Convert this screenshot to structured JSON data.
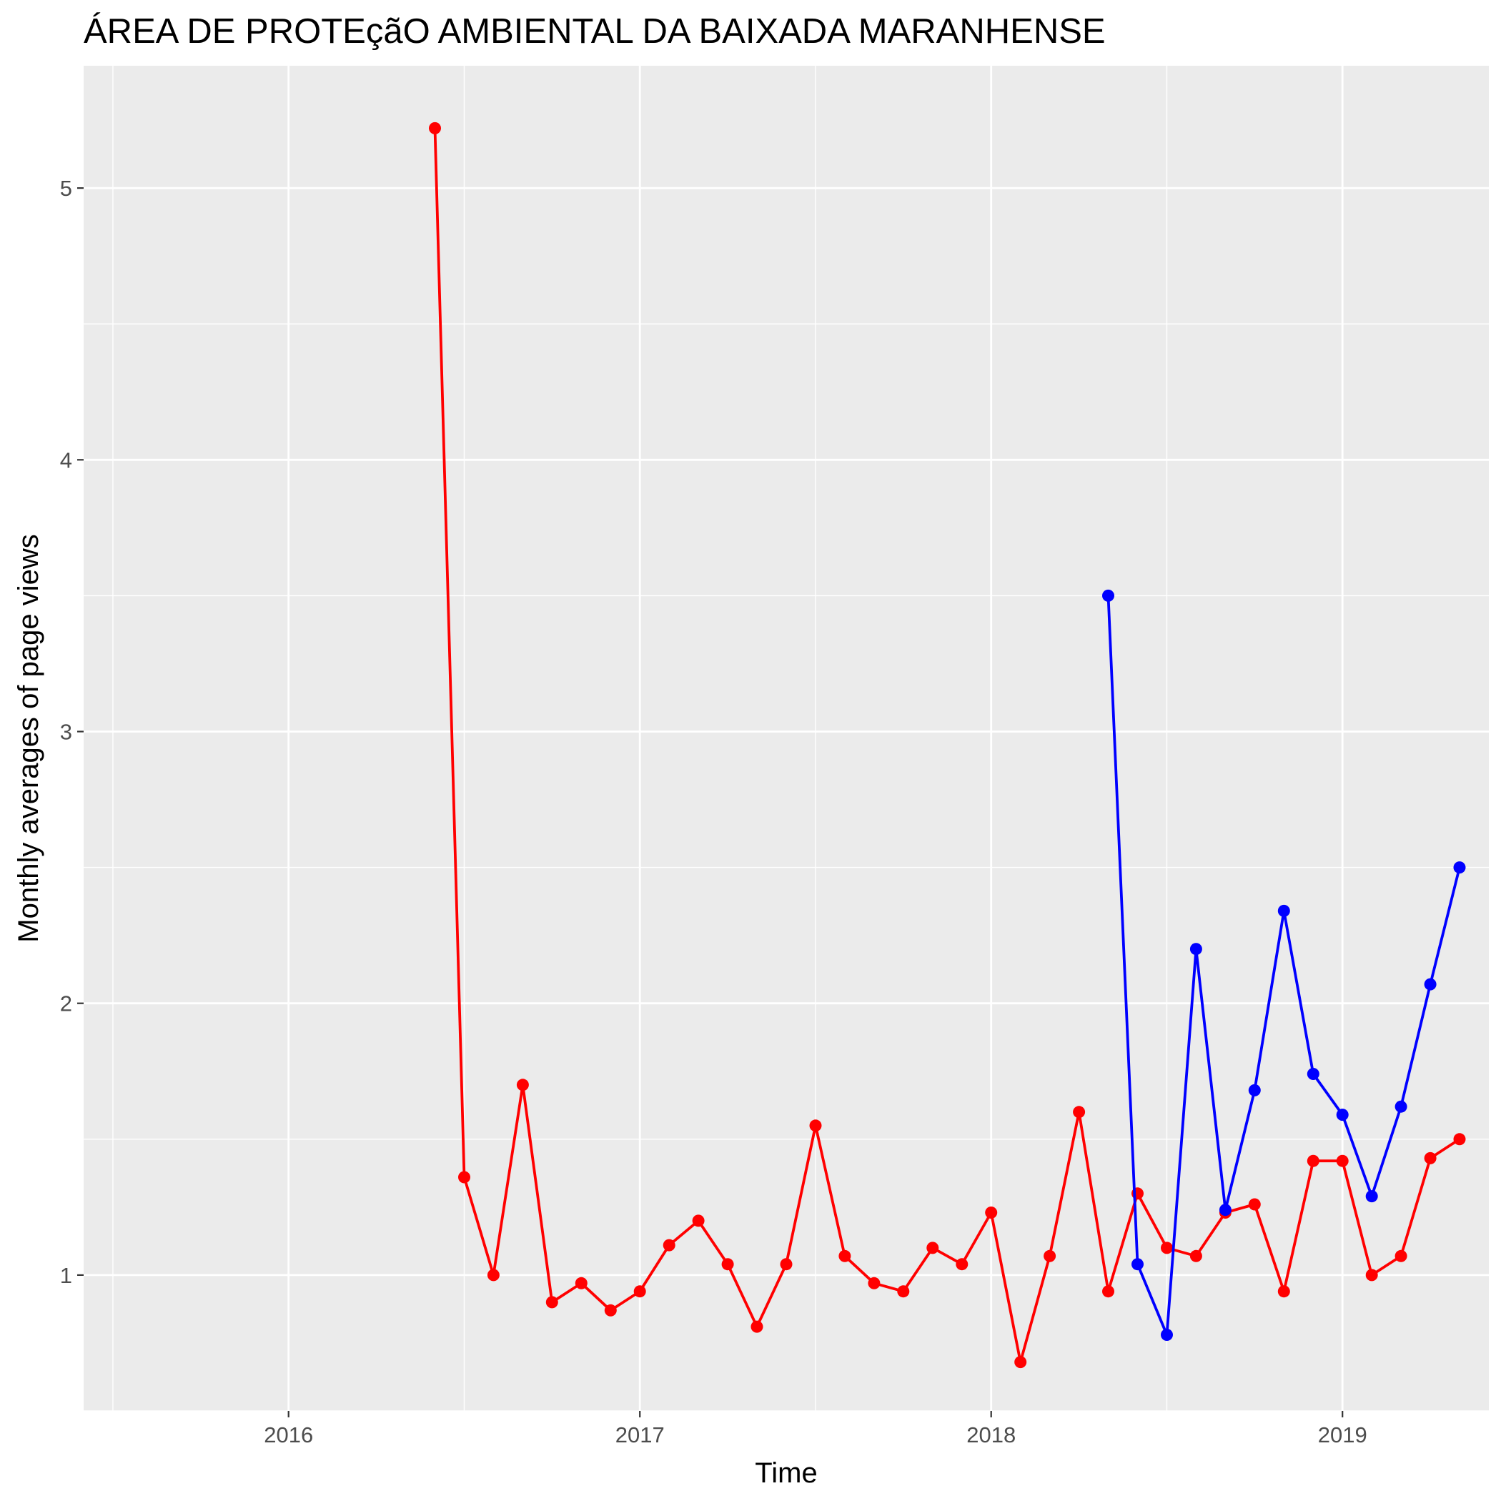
{
  "chart_data": {
    "type": "line",
    "title": "ÁREA DE PROTEçãO AMBIENTAL DA BAIXADA MARANHENSE",
    "xlabel": "Time",
    "ylabel": "Monthly averages of page views",
    "x_ticks": [
      "2016",
      "2017",
      "2018",
      "2019"
    ],
    "y_ticks": [
      "1",
      "2",
      "3",
      "4",
      "5"
    ],
    "xlim": [
      "2015-06",
      "2019-06"
    ],
    "ylim": [
      0.5,
      5.45
    ],
    "grid": true,
    "legend": "none",
    "series": [
      {
        "color": "#ff0000",
        "points": [
          {
            "x": "2016-06",
            "y": 5.22
          },
          {
            "x": "2016-07",
            "y": 1.36
          },
          {
            "x": "2016-08",
            "y": 1.0
          },
          {
            "x": "2016-09",
            "y": 1.7
          },
          {
            "x": "2016-10",
            "y": 0.9
          },
          {
            "x": "2016-11",
            "y": 0.97
          },
          {
            "x": "2016-12",
            "y": 0.87
          },
          {
            "x": "2017-01",
            "y": 0.94
          },
          {
            "x": "2017-02",
            "y": 1.11
          },
          {
            "x": "2017-03",
            "y": 1.2
          },
          {
            "x": "2017-04",
            "y": 1.04
          },
          {
            "x": "2017-05",
            "y": 0.81
          },
          {
            "x": "2017-06",
            "y": 1.04
          },
          {
            "x": "2017-07",
            "y": 1.55
          },
          {
            "x": "2017-08",
            "y": 1.07
          },
          {
            "x": "2017-09",
            "y": 0.97
          },
          {
            "x": "2017-10",
            "y": 0.94
          },
          {
            "x": "2017-11",
            "y": 1.1
          },
          {
            "x": "2017-12",
            "y": 1.04
          },
          {
            "x": "2018-01",
            "y": 1.23
          },
          {
            "x": "2018-02",
            "y": 0.68
          },
          {
            "x": "2018-03",
            "y": 1.07
          },
          {
            "x": "2018-04",
            "y": 1.6
          },
          {
            "x": "2018-05",
            "y": 0.94
          },
          {
            "x": "2018-06",
            "y": 1.3
          },
          {
            "x": "2018-07",
            "y": 1.1
          },
          {
            "x": "2018-08",
            "y": 1.07
          },
          {
            "x": "2018-09",
            "y": 1.23
          },
          {
            "x": "2018-10",
            "y": 1.26
          },
          {
            "x": "2018-11",
            "y": 0.94
          },
          {
            "x": "2018-12",
            "y": 1.42
          },
          {
            "x": "2019-01",
            "y": 1.42
          },
          {
            "x": "2019-02",
            "y": 1.0
          },
          {
            "x": "2019-03",
            "y": 1.07
          },
          {
            "x": "2019-04",
            "y": 1.43
          },
          {
            "x": "2019-05",
            "y": 1.5
          }
        ]
      },
      {
        "color": "#0000ff",
        "points": [
          {
            "x": "2018-05",
            "y": 3.5
          },
          {
            "x": "2018-06",
            "y": 1.04
          },
          {
            "x": "2018-07",
            "y": 0.78
          },
          {
            "x": "2018-08",
            "y": 2.2
          },
          {
            "x": "2018-09",
            "y": 1.24
          },
          {
            "x": "2018-10",
            "y": 1.68
          },
          {
            "x": "2018-11",
            "y": 2.34
          },
          {
            "x": "2018-12",
            "y": 1.74
          },
          {
            "x": "2019-01",
            "y": 1.59
          },
          {
            "x": "2019-02",
            "y": 1.29
          },
          {
            "x": "2019-03",
            "y": 1.62
          },
          {
            "x": "2019-04",
            "y": 2.07
          },
          {
            "x": "2019-05",
            "y": 2.5
          }
        ]
      }
    ]
  }
}
